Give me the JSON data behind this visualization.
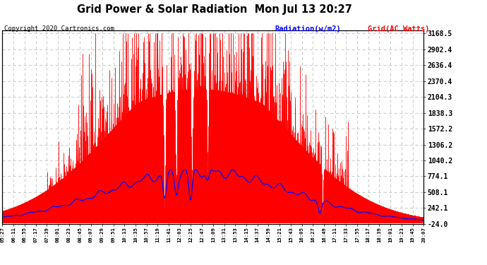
{
  "title": "Grid Power & Solar Radiation  Mon Jul 13 20:27",
  "copyright": "Copyright 2020 Cartronics.com",
  "legend_radiation": "Radiation(w/m2)",
  "legend_grid": "Grid(AC Watts)",
  "y_ticks": [
    3168.5,
    2902.4,
    2636.4,
    2370.4,
    2104.3,
    1838.3,
    1572.2,
    1306.2,
    1040.2,
    774.1,
    508.1,
    242.1,
    -24.0
  ],
  "y_min": -24.0,
  "y_max": 3168.5,
  "background_color": "#ffffff",
  "plot_bg_color": "#ffffff",
  "grid_color": "#c0c0c0",
  "bar_color": "#ff0000",
  "line_color": "#0000ff",
  "x_labels": [
    "05:27",
    "06:11",
    "06:55",
    "07:17",
    "07:39",
    "08:01",
    "08:23",
    "08:45",
    "09:07",
    "09:29",
    "09:51",
    "10:13",
    "10:35",
    "10:57",
    "11:19",
    "11:41",
    "12:03",
    "12:25",
    "12:47",
    "13:09",
    "13:31",
    "13:53",
    "14:15",
    "14:37",
    "14:59",
    "15:21",
    "15:43",
    "16:05",
    "16:27",
    "16:49",
    "17:11",
    "17:33",
    "17:55",
    "18:17",
    "18:39",
    "19:01",
    "19:23",
    "19:45",
    "20:07"
  ]
}
